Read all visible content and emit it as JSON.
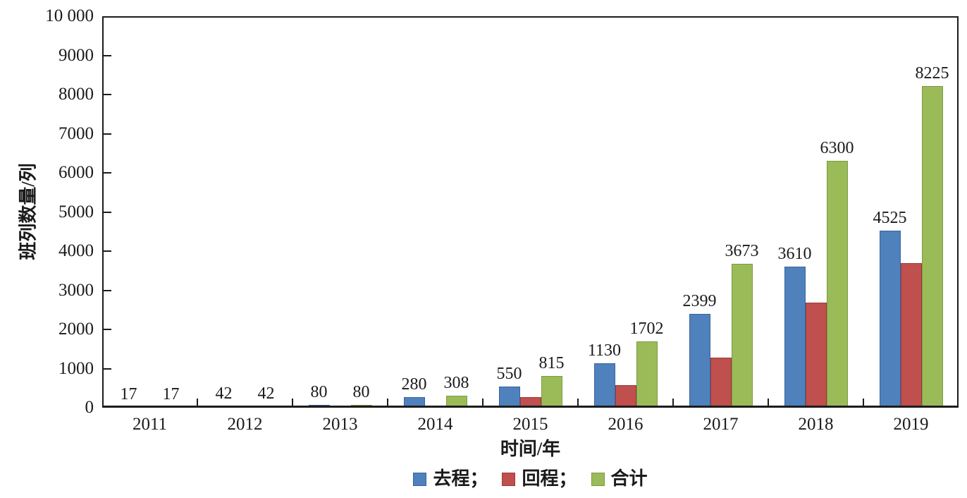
{
  "chart_data": {
    "type": "bar",
    "title": "",
    "categories": [
      "2011",
      "2012",
      "2013",
      "2014",
      "2015",
      "2016",
      "2017",
      "2018",
      "2019"
    ],
    "series": [
      {
        "id": "outbound",
        "name": "去程",
        "values": [
          17,
          42,
          80,
          280,
          550,
          1130,
          2399,
          3610,
          4525
        ],
        "color": "#4f81bd",
        "border_color": "#3a639b",
        "show_labels": true
      },
      {
        "id": "return",
        "name": "回程",
        "values": [
          0,
          0,
          0,
          28,
          265,
          572,
          1274,
          2690,
          3700
        ],
        "color": "#c0504d",
        "border_color": "#963b39",
        "show_labels": false
      },
      {
        "id": "total",
        "name": "合计",
        "values": [
          17,
          42,
          80,
          308,
          815,
          1702,
          3673,
          6300,
          8225
        ],
        "color": "#9bbb59",
        "border_color": "#7b9a44",
        "show_labels": true
      }
    ],
    "xlabel": "时间/年",
    "ylabel": "班列数量/列",
    "ylim": [
      0,
      10000
    ],
    "ytick_interval": 1000,
    "ytick_labels": [
      "0",
      "1000",
      "2000",
      "3000",
      "4000",
      "5000",
      "6000",
      "7000",
      "8000",
      "9000",
      "10 000"
    ],
    "grid": false,
    "axis_color": "#1c1c1c",
    "legend": {
      "position": "bottom",
      "items": [
        {
          "label": "去程；",
          "series_index": 0
        },
        {
          "label": "回程；",
          "series_index": 1
        },
        {
          "label": "合计",
          "series_index": 2
        }
      ]
    }
  }
}
